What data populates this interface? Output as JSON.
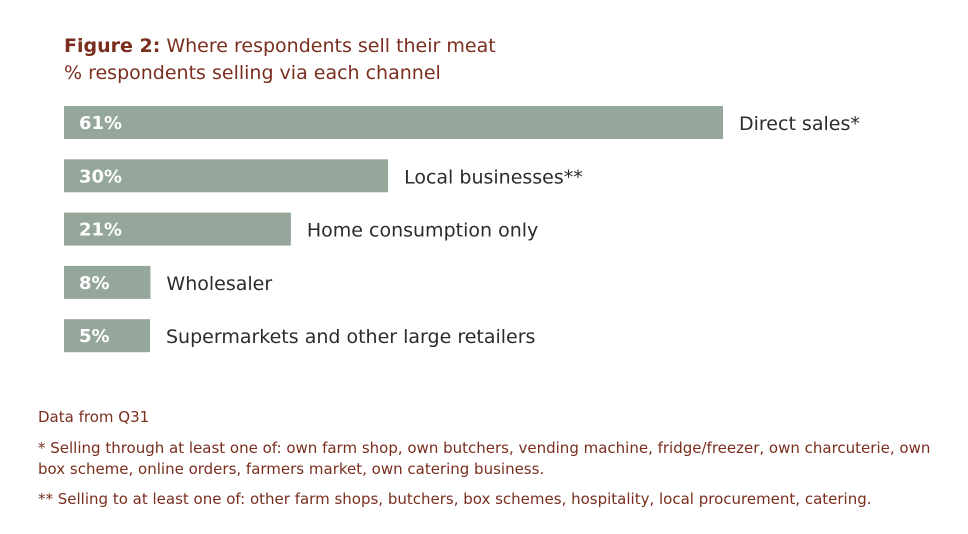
{
  "title": {
    "prefix": "Figure 2:",
    "text": " Where respondents sell their meat"
  },
  "subtitle": "% respondents selling via each channel",
  "chart_data": {
    "type": "bar",
    "orientation": "horizontal",
    "categories": [
      "Direct sales*",
      "Local businesses**",
      "Home consumption only",
      "Wholesaler",
      "Supermarkets and other large retailers"
    ],
    "values": [
      61,
      30,
      21,
      8,
      5
    ],
    "value_labels": [
      "61%",
      "30%",
      "21%",
      "8%",
      "5%"
    ],
    "xlim": [
      0,
      61
    ],
    "bar_color": "#95a79b",
    "label_color": "#ffffff",
    "category_color": "#2b2b2b"
  },
  "footer": {
    "source": "Data from Q31",
    "note1": "* Selling through at least one of: own farm shop, own butchers, vending machine, fridge/freezer, own charcuterie, own box scheme, online orders, farmers market, own catering business.",
    "note2": "** Selling to at least one of: other farm shops, butchers, box schemes, hospitality, local procurement, catering."
  }
}
